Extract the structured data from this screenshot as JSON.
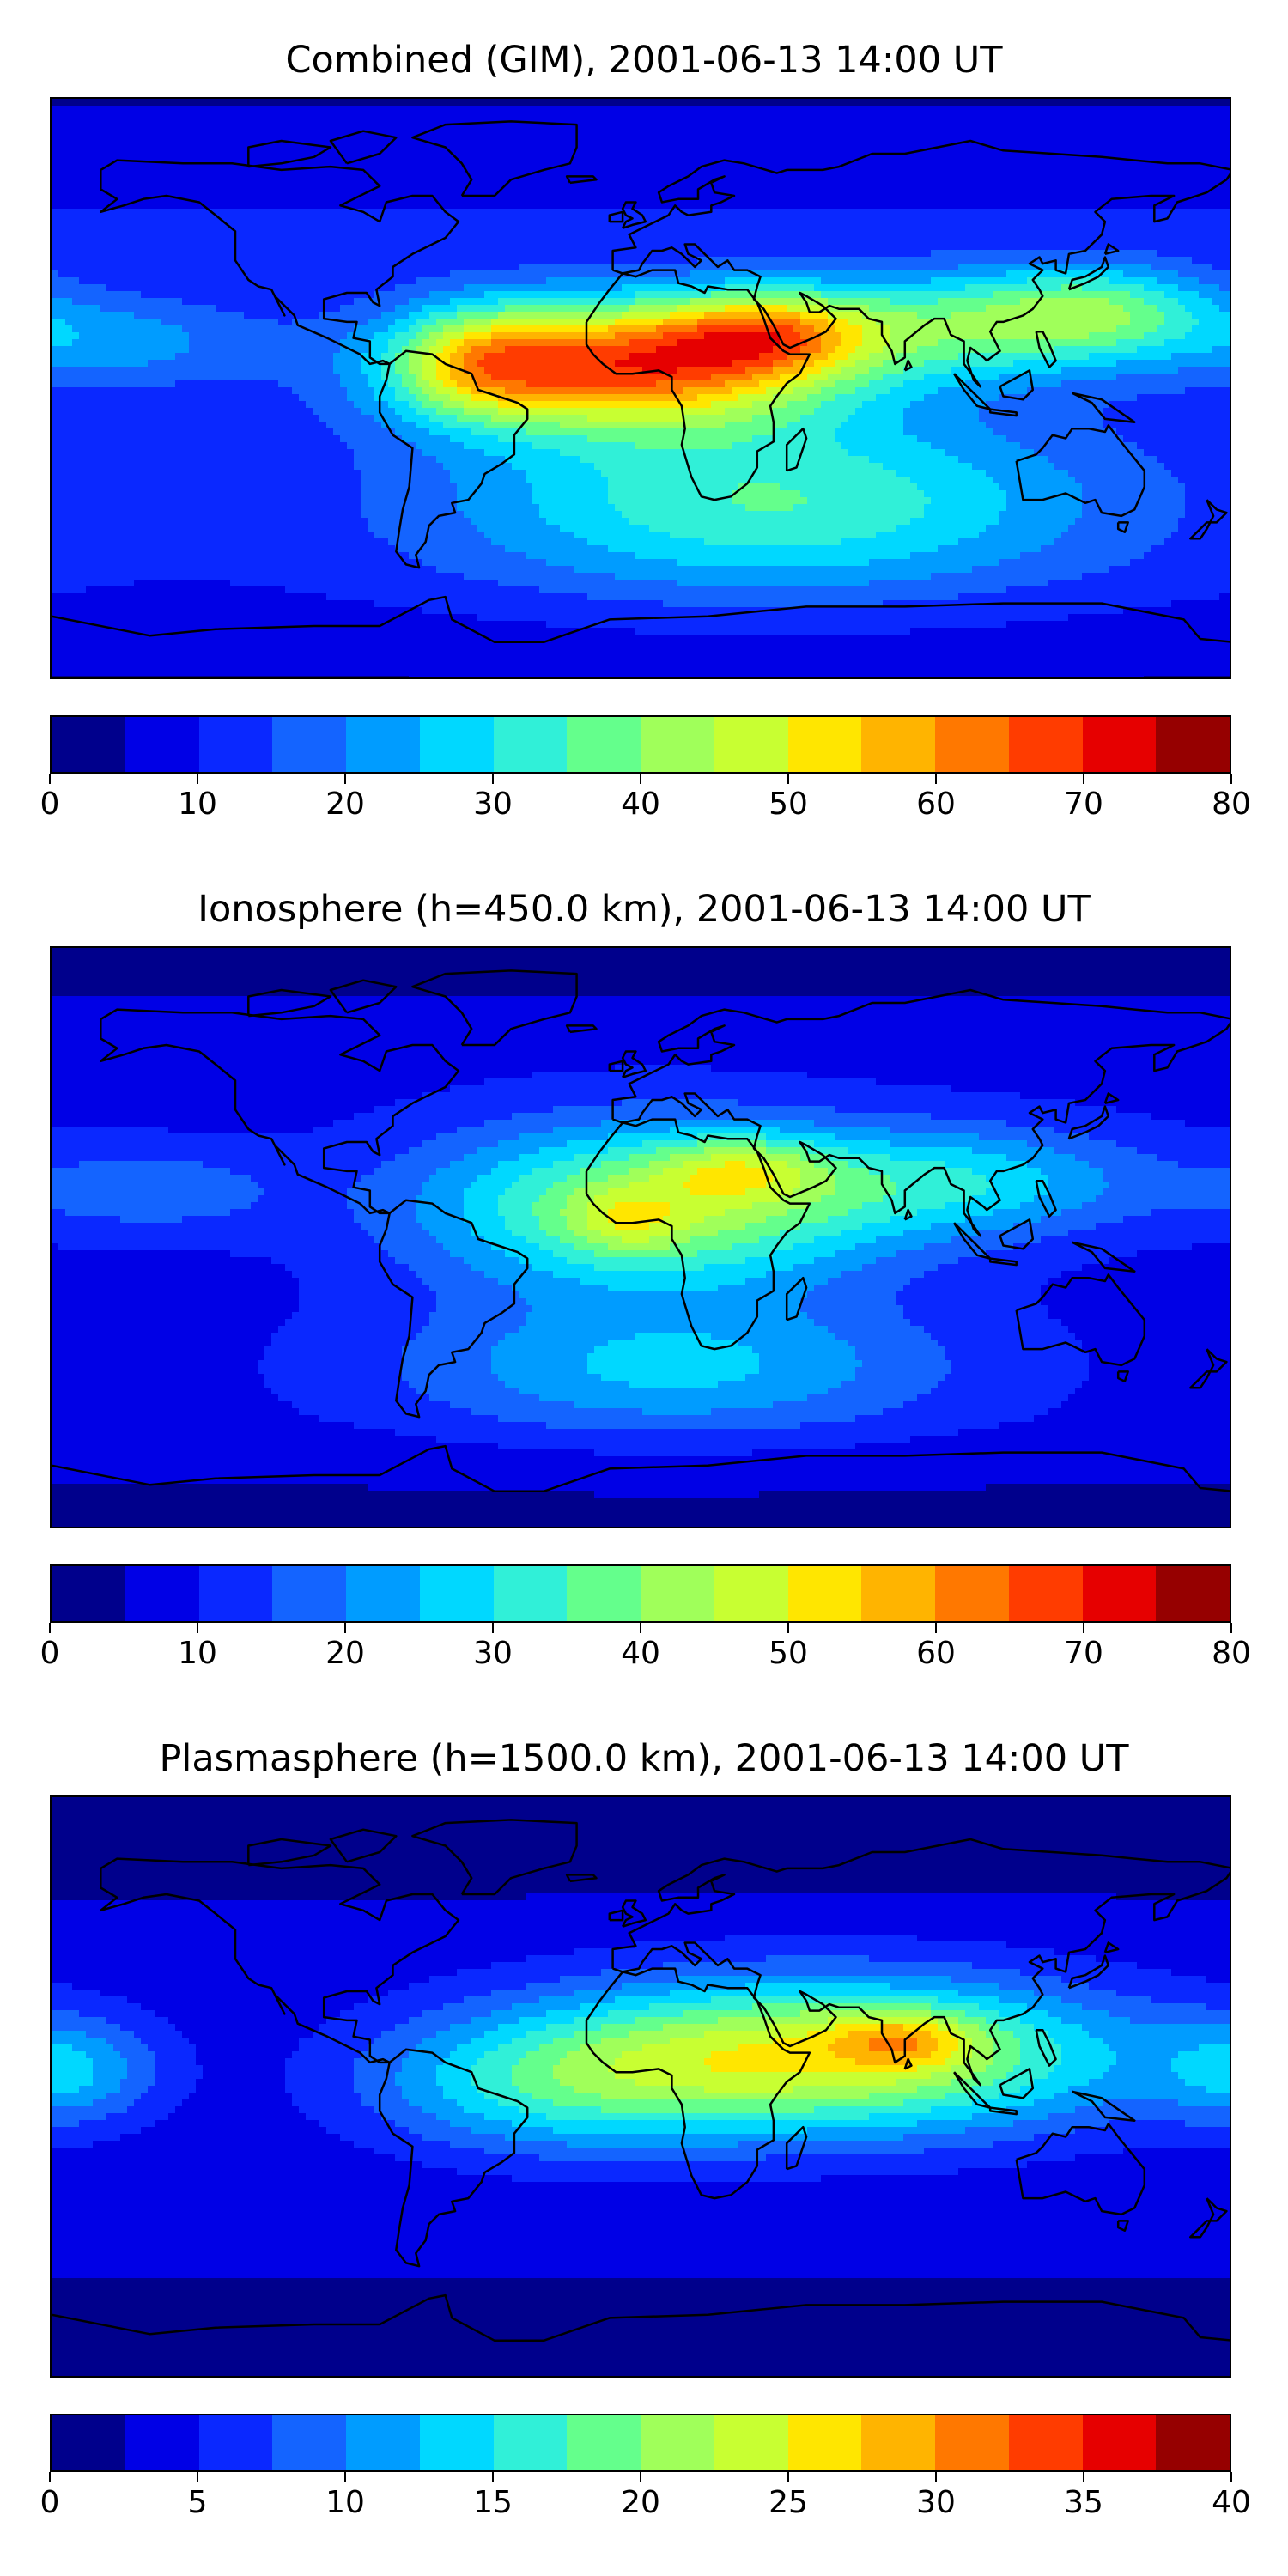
{
  "panels": [
    {
      "title": "Combined (GIM), 2001-06-13 14:00 UT",
      "colorbar": {
        "ticks": [
          "0",
          "10",
          "20",
          "30",
          "40",
          "50",
          "60",
          "70",
          "80"
        ],
        "min": 0,
        "max": 80,
        "levels": 16
      },
      "field": {
        "base": 10,
        "blobs": [
          {
            "lon": -5,
            "lat": 8,
            "amp": 55,
            "slon": 45,
            "slat": 14
          },
          {
            "lon": 38,
            "lat": 18,
            "amp": 25,
            "slon": 22,
            "slat": 9
          },
          {
            "lon": -50,
            "lat": 8,
            "amp": 20,
            "slon": 18,
            "slat": 12
          },
          {
            "lon": 40,
            "lat": -35,
            "amp": 25,
            "slon": 70,
            "slat": 20
          },
          {
            "lon": 100,
            "lat": 20,
            "amp": 24,
            "slon": 40,
            "slat": 12
          },
          {
            "lon": 140,
            "lat": 25,
            "amp": 18,
            "slon": 25,
            "slat": 10
          },
          {
            "lon": -160,
            "lat": 15,
            "amp": 12,
            "slon": 30,
            "slat": 10
          }
        ]
      }
    },
    {
      "title": "Ionosphere  (h=450.0 km), 2001-06-13 14:00 UT",
      "colorbar": {
        "ticks": [
          "0",
          "10",
          "20",
          "30",
          "40",
          "50",
          "60",
          "70",
          "80"
        ],
        "min": 0,
        "max": 80,
        "levels": 16
      },
      "field": {
        "base": 8,
        "blobs": [
          {
            "lon": 5,
            "lat": 10,
            "amp": 35,
            "slon": 50,
            "slat": 18
          },
          {
            "lon": 30,
            "lat": 22,
            "amp": 15,
            "slon": 18,
            "slat": 7
          },
          {
            "lon": -5,
            "lat": 5,
            "amp": 10,
            "slon": 12,
            "slat": 7
          },
          {
            "lon": 100,
            "lat": 18,
            "amp": 18,
            "slon": 40,
            "slat": 12
          },
          {
            "lon": 10,
            "lat": -40,
            "amp": 18,
            "slon": 60,
            "slat": 15
          },
          {
            "lon": -150,
            "lat": 15,
            "amp": 10,
            "slon": 30,
            "slat": 10
          }
        ]
      }
    },
    {
      "title": "Plasmasphere (h=1500.0 km), 2001-06-13 14:00 UT",
      "colorbar": {
        "ticks": [
          "0",
          "5",
          "10",
          "15",
          "20",
          "25",
          "30",
          "35",
          "40"
        ],
        "min": 0,
        "max": 40,
        "levels": 16
      },
      "field": {
        "base": 3,
        "blobs": [
          {
            "lon": 55,
            "lat": 10,
            "amp": 22,
            "slon": 65,
            "slat": 17
          },
          {
            "lon": 80,
            "lat": 15,
            "amp": 8,
            "slon": 15,
            "slat": 6
          },
          {
            "lon": -30,
            "lat": 0,
            "amp": 8,
            "slon": 40,
            "slat": 15
          },
          {
            "lon": -175,
            "lat": 5,
            "amp": 8,
            "slon": 20,
            "slat": 12
          }
        ]
      }
    }
  ],
  "colors": [
    "#00008c",
    "#0000e6",
    "#0a28ff",
    "#1464ff",
    "#009cff",
    "#00d8ff",
    "#30f0d8",
    "#64ff8c",
    "#a0ff5a",
    "#c8ff32",
    "#ffe600",
    "#ffb400",
    "#ff7800",
    "#ff3c00",
    "#e60000",
    "#960000"
  ],
  "coastline_color": "#000000"
}
